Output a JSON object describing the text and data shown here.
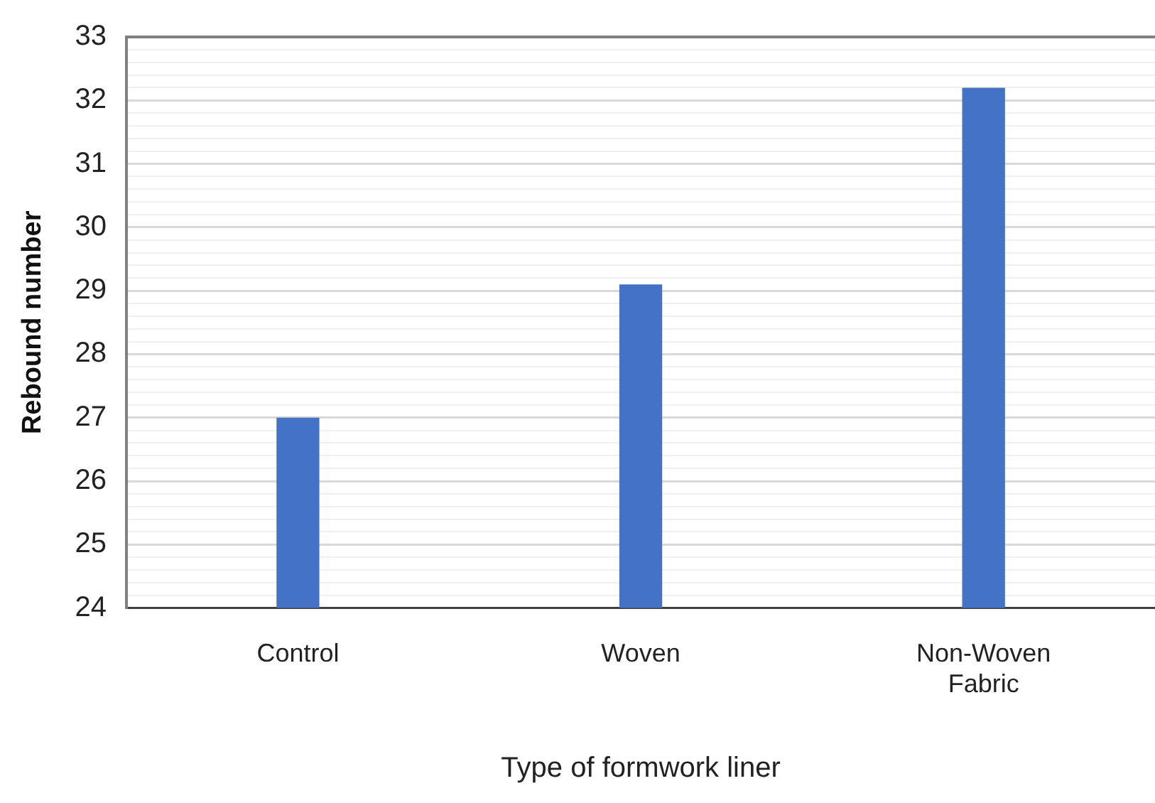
{
  "chart_data": {
    "type": "bar",
    "xlabel": "Type of formwork liner",
    "ylabel": "Rebound number",
    "categories": [
      "Control",
      "Woven",
      "Non-Woven Fabric"
    ],
    "values": [
      27.0,
      29.1,
      32.2
    ],
    "color": "#4472c4",
    "ylim": [
      24,
      33
    ],
    "yticks": [
      24,
      {
        "value": 24.2,
        "label": null
      },
      {
        "value": 24.4,
        "label": null
      },
      {
        "value": 24.6,
        "label": null
      },
      {
        "value": 24.8,
        "label": null
      },
      25,
      {
        "value": 25.2,
        "label": null
      },
      {
        "value": 25.4,
        "label": null
      },
      {
        "value": 25.6,
        "label": null
      },
      {
        "value": 25.8,
        "label": null
      },
      26,
      {
        "value": 26.2,
        "label": null
      },
      {
        "value": 26.4,
        "label": null
      },
      {
        "value": 26.6,
        "label": null
      },
      {
        "value": 26.8,
        "label": null
      },
      27,
      {
        "value": 27.2,
        "label": null
      },
      {
        "value": 27.4,
        "label": null
      },
      {
        "value": 27.6,
        "label": null
      },
      {
        "value": 27.8,
        "label": null
      },
      28,
      {
        "value": 28.2,
        "label": null
      },
      {
        "value": 28.4,
        "label": null
      },
      {
        "value": 28.6,
        "label": null
      },
      {
        "value": 28.8,
        "label": null
      },
      29,
      {
        "value": 29.2,
        "label": null
      },
      {
        "value": 29.4,
        "label": null
      },
      {
        "value": 29.6,
        "label": null
      },
      {
        "value": 29.8,
        "label": null
      },
      30,
      {
        "value": 30.2,
        "label": null
      },
      {
        "value": 30.4,
        "label": null
      },
      {
        "value": 30.6,
        "label": null
      },
      {
        "value": 30.8,
        "label": null
      },
      31,
      {
        "value": 31.2,
        "label": null
      },
      {
        "value": 31.4,
        "label": null
      },
      {
        "value": 31.6,
        "label": null
      },
      {
        "value": 31.8,
        "label": null
      },
      32,
      {
        "value": 32.2,
        "label": null
      },
      {
        "value": 32.4,
        "label": null
      },
      {
        "value": 32.6,
        "label": null
      },
      {
        "value": 32.8,
        "label": null
      },
      33
    ],
    "grid": "y",
    "legend": false
  }
}
